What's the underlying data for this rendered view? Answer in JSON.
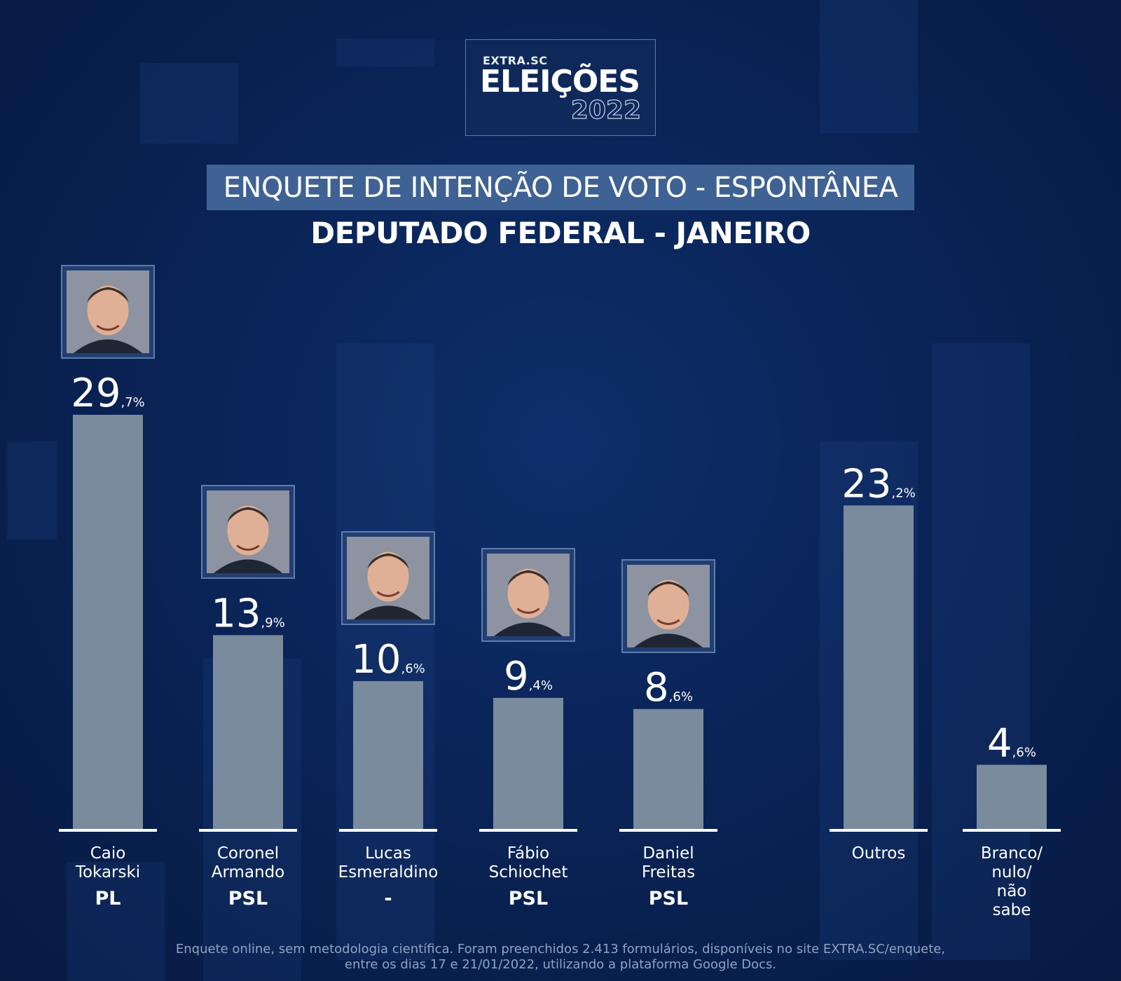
{
  "logo": {
    "brand": "EXTRA.SC",
    "word": "ELEIÇÕES",
    "year": "2022"
  },
  "title": "ENQUETE DE INTENÇÃO DE VOTO - ESPONTÂNEA",
  "subtitle": "DEPUTADO FEDERAL - JANEIRO",
  "footnote": {
    "line1": "Enquete online, sem metodologia científica. Foram preenchidos 2.413 formulários, disponíveis no site EXTRA.SC/enquete,",
    "line2": "entre os dias 17 e 21/01/2022, utilizando a plataforma Google Docs."
  },
  "colors": {
    "bar": "#7a8b9d",
    "background": "#0a2457",
    "banner": "#3f6294"
  },
  "chart_data": {
    "type": "bar",
    "title": "ENQUETE DE INTENÇÃO DE VOTO - ESPONTÂNEA",
    "subtitle": "DEPUTADO FEDERAL - JANEIRO",
    "unit": "%",
    "ylim": [
      0,
      30
    ],
    "grid": false,
    "bars": [
      {
        "label": "Caio Tokarski",
        "party": "PL",
        "value": 29.7,
        "int": "29",
        "dec": ",7%",
        "photo": true
      },
      {
        "label": "Coronel Armando",
        "party": "PSL",
        "value": 13.9,
        "int": "13",
        "dec": ",9%",
        "photo": true
      },
      {
        "label": "Lucas Esmeraldino",
        "party": "-",
        "value": 10.6,
        "int": "10",
        "dec": ",6%",
        "photo": true
      },
      {
        "label": "Fábio Schiochet",
        "party": "PSL",
        "value": 9.4,
        "int": "9",
        "dec": ",4%",
        "photo": true
      },
      {
        "label": "Daniel Freitas",
        "party": "PSL",
        "value": 8.6,
        "int": "8",
        "dec": ",6%",
        "photo": true
      },
      {
        "label": "Outros",
        "party": "",
        "value": 23.2,
        "int": "23",
        "dec": ",2%",
        "photo": false
      },
      {
        "label": "Branco/ nulo/ não sabe",
        "party": "",
        "value": 4.6,
        "int": "4",
        "dec": ",6%",
        "photo": false
      }
    ]
  }
}
